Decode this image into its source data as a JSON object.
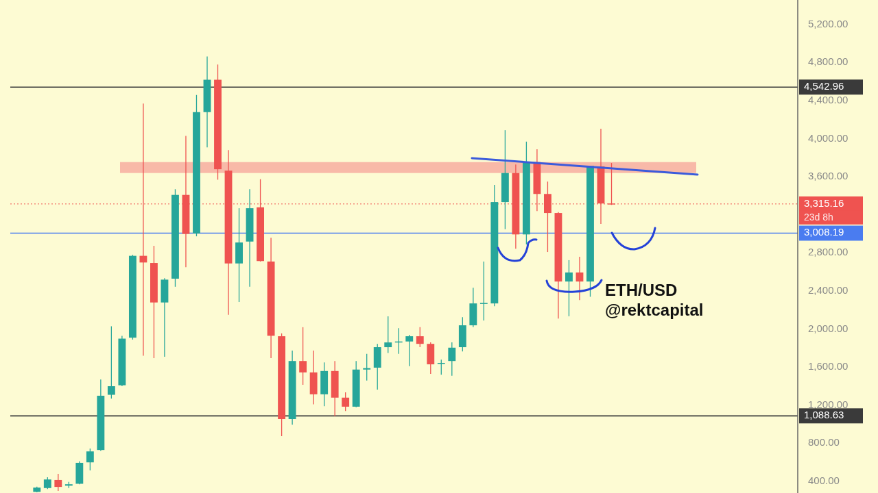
{
  "chart_data": {
    "type": "candlestick",
    "categories": [
      null,
      null,
      null,
      null,
      null,
      null,
      null,
      null,
      null,
      null,
      null,
      null,
      null,
      null,
      null,
      null,
      null,
      null,
      null,
      null,
      null,
      null,
      null,
      null,
      null,
      null,
      null,
      null,
      null,
      null,
      null,
      null,
      null,
      null,
      null,
      null,
      null,
      null,
      null,
      null,
      null,
      null,
      null,
      null,
      null,
      null,
      null,
      null,
      null,
      null,
      null,
      null,
      null,
      null,
      null,
      null,
      null,
      null,
      null,
      null,
      null,
      null,
      null,
      null,
      null,
      null,
      null,
      null,
      null,
      null,
      null,
      null,
      null,
      null
    ],
    "ohlc": [
      null,
      null,
      [
        290,
        345,
        285,
        335
      ],
      [
        330,
        443,
        320,
        420
      ],
      [
        415,
        480,
        300,
        342
      ],
      [
        355,
        395,
        330,
        370
      ],
      [
        375,
        610,
        370,
        595
      ],
      [
        600,
        745,
        515,
        715
      ],
      [
        730,
        1470,
        720,
        1300
      ],
      [
        1310,
        2030,
        1270,
        1400
      ],
      [
        1410,
        1930,
        1400,
        1900
      ],
      [
        1910,
        2780,
        1890,
        2770
      ],
      [
        2770,
        4370,
        1720,
        2700
      ],
      [
        2695,
        2875,
        1695,
        2280
      ],
      [
        2280,
        2535,
        1710,
        2520
      ],
      [
        2530,
        3470,
        2445,
        3410
      ],
      [
        3410,
        4030,
        2650,
        3000
      ],
      [
        3005,
        4460,
        2975,
        4280
      ],
      [
        4280,
        4865,
        3910,
        4620
      ],
      [
        4620,
        4780,
        3570,
        3680
      ],
      [
        3665,
        3880,
        2150,
        2690
      ],
      [
        2690,
        3270,
        2285,
        2910
      ],
      [
        2920,
        3470,
        2445,
        3270
      ],
      [
        3280,
        3575,
        2710,
        2715
      ],
      [
        2710,
        2960,
        1695,
        1930
      ],
      [
        1925,
        1955,
        875,
        1055
      ],
      [
        1055,
        1775,
        995,
        1665
      ],
      [
        1665,
        2020,
        1415,
        1545
      ],
      [
        1545,
        1775,
        1210,
        1315
      ],
      [
        1315,
        1650,
        1190,
        1560
      ],
      [
        1560,
        1665,
        1085,
        1280
      ],
      [
        1280,
        1335,
        1140,
        1185
      ],
      [
        1185,
        1665,
        1180,
        1575
      ],
      [
        1575,
        1740,
        1460,
        1590
      ],
      [
        1595,
        1845,
        1365,
        1810
      ],
      [
        1810,
        2135,
        1750,
        1860
      ],
      [
        1865,
        2010,
        1740,
        1870
      ],
      [
        1870,
        1940,
        1610,
        1925
      ],
      [
        1925,
        2020,
        1810,
        1845
      ],
      [
        1845,
        1860,
        1530,
        1630
      ],
      [
        1640,
        1680,
        1520,
        1645
      ],
      [
        1665,
        1860,
        1510,
        1805
      ],
      [
        1810,
        2125,
        1765,
        2040
      ],
      [
        2040,
        2435,
        2020,
        2270
      ],
      [
        2270,
        2710,
        2090,
        2275
      ],
      [
        2270,
        3515,
        2240,
        3335
      ],
      [
        3335,
        4090,
        3050,
        3640
      ],
      [
        3640,
        3730,
        2845,
        2995
      ],
      [
        2995,
        3970,
        2890,
        3755
      ],
      [
        3755,
        3890,
        3240,
        3420
      ],
      [
        3420,
        3550,
        2810,
        3220
      ],
      [
        3220,
        3230,
        2110,
        2500
      ],
      [
        2500,
        2725,
        2135,
        2595
      ],
      [
        2595,
        2760,
        2305,
        2500
      ],
      [
        2500,
        3715,
        2340,
        3715
      ],
      [
        3710,
        4105,
        3105,
        3320
      ],
      [
        3320,
        3745,
        3305,
        3315.16
      ],
      null,
      null,
      null,
      null,
      null,
      null,
      null,
      null,
      null,
      null,
      null,
      null,
      null,
      null,
      null,
      null,
      null
    ],
    "colors": [
      null,
      null,
      "#26a69a",
      "#26a69a",
      "#ef5350",
      "#26a69a",
      "#26a69a",
      "#26a69a",
      "#26a69a",
      "#26a69a",
      "#26a69a",
      "#26a69a",
      "#ef5350",
      "#ef5350",
      "#26a69a",
      "#26a69a",
      "#ef5350",
      "#26a69a",
      "#26a69a",
      "#ef5350",
      "#ef5350",
      "#26a69a",
      "#26a69a",
      "#ef5350",
      "#ef5350",
      "#ef5350",
      "#26a69a",
      "#ef5350",
      "#ef5350",
      "#26a69a",
      "#ef5350",
      "#ef5350",
      "#26a69a",
      "#26a69a",
      "#26a69a",
      "#26a69a",
      "#26a69a",
      "#26a69a",
      "#ef5350",
      "#ef5350",
      "#26a69a",
      "#26a69a",
      "#26a69a",
      "#26a69a",
      "#26a69a",
      "#26a69a",
      "#26a69a",
      "#ef5350",
      "#26a69a",
      "#ef5350",
      "#ef5350",
      "#ef5350",
      "#26a69a",
      "#ef5350",
      "#26a69a",
      "#ef5350",
      "#ef5350",
      null,
      null,
      null,
      null,
      null,
      null,
      null,
      null,
      null,
      null,
      null,
      null,
      null,
      null,
      null,
      null,
      null
    ],
    "ylim": [
      278,
      5458
    ],
    "yticks": [
      {
        "value": 400,
        "label": "400.00"
      },
      {
        "value": 800,
        "label": "800.00"
      },
      {
        "value": 1200,
        "label": "1,200.00"
      },
      {
        "value": 1600,
        "label": "1,600.00"
      },
      {
        "value": 2000,
        "label": "2,000.00"
      },
      {
        "value": 2400,
        "label": "2,400.00"
      },
      {
        "value": 2800,
        "label": "2,800.00"
      },
      {
        "value": 3600,
        "label": "3,600.00"
      },
      {
        "value": 4000,
        "label": "4,000.00"
      },
      {
        "value": 4400,
        "label": "4,400.00"
      },
      {
        "value": 4800,
        "label": "4,800.00"
      },
      {
        "value": 5200,
        "label": "5,200.00"
      }
    ],
    "tick_labels": "y",
    "ref_lines": [
      {
        "axis": "y",
        "value": 4542.96,
        "label": "4,542.96",
        "color": "#3a3a3a"
      },
      {
        "axis": "y",
        "value": 1088.63,
        "label": "1,088.63",
        "color": "#3a3a3a"
      },
      {
        "axis": "y",
        "value": 3008.19,
        "label": "3,008.19",
        "color": "#4a7cf0"
      },
      {
        "axis": "y",
        "value": 3315.16,
        "label": "3,315.16",
        "color": "#ef5350",
        "line_style": "dotted"
      }
    ],
    "bands": [
      {
        "axis": "y",
        "from": 3640,
        "to": 3755,
        "color": "#f8b9a8"
      }
    ],
    "annotations": [
      "23d 8h",
      "ETH/USD",
      "@rektcapital"
    ]
  }
}
